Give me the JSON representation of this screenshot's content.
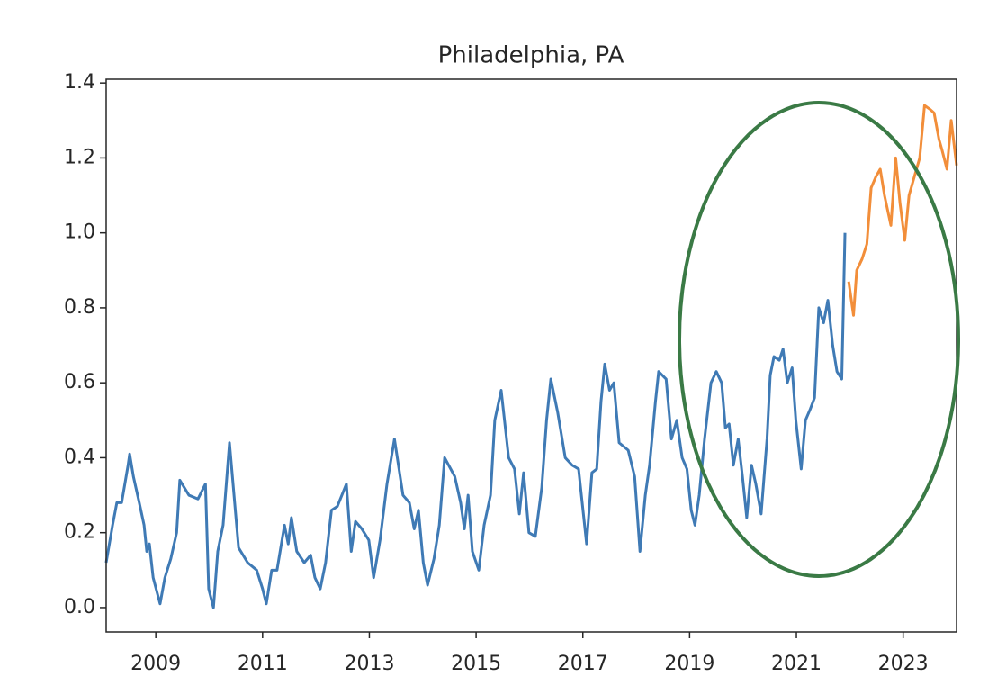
{
  "chart_data": {
    "type": "line",
    "title": "Philadelphia, PA",
    "xlim": [
      2008.07,
      2024.0
    ],
    "xticks": [
      2009,
      2011,
      2013,
      2015,
      2017,
      2019,
      2021,
      2023
    ],
    "ylim": [
      -0.065,
      1.41
    ],
    "yticks": [
      {
        "value": 0,
        "label": "0.0"
      },
      0.2,
      0.4,
      0.6,
      0.8,
      {
        "value": 1,
        "label": "1.0"
      },
      1.2,
      1.4
    ],
    "grid": false,
    "series": [
      {
        "color": "#3f7ab5",
        "x": [
          2008.07,
          2008.19,
          2008.27,
          2008.36,
          2008.48,
          2008.51,
          2008.58,
          2008.69,
          2008.78,
          2008.83,
          2008.88,
          2008.95,
          2009.08,
          2009.17,
          2009.28,
          2009.39,
          2009.45,
          2009.62,
          2009.79,
          2009.93,
          2009.99,
          2010.08,
          2010.16,
          2010.26,
          2010.38,
          2010.55,
          2010.72,
          2010.89,
          2011.0,
          2011.07,
          2011.17,
          2011.27,
          2011.41,
          2011.48,
          2011.54,
          2011.64,
          2011.78,
          2011.9,
          2011.98,
          2012.08,
          2012.18,
          2012.29,
          2012.4,
          2012.57,
          2012.66,
          2012.74,
          2012.86,
          2012.99,
          2013.08,
          2013.2,
          2013.33,
          2013.47,
          2013.63,
          2013.75,
          2013.84,
          2013.92,
          2014.01,
          2014.09,
          2014.21,
          2014.31,
          2014.41,
          2014.6,
          2014.71,
          2014.78,
          2014.85,
          2014.93,
          2015.05,
          2015.15,
          2015.27,
          2015.35,
          2015.47,
          2015.61,
          2015.72,
          2015.81,
          2015.89,
          2015.99,
          2016.11,
          2016.23,
          2016.32,
          2016.4,
          2016.53,
          2016.67,
          2016.8,
          2016.92,
          2017.01,
          2017.07,
          2017.17,
          2017.26,
          2017.34,
          2017.41,
          2017.5,
          2017.58,
          2017.68,
          2017.85,
          2017.97,
          2018.07,
          2018.17,
          2018.25,
          2018.36,
          2018.42,
          2018.56,
          2018.66,
          2018.76,
          2018.86,
          2018.95,
          2019.03,
          2019.1,
          2019.18,
          2019.28,
          2019.4,
          2019.5,
          2019.6,
          2019.67,
          2019.74,
          2019.82,
          2019.91,
          2019.99,
          2020.07,
          2020.16,
          2020.24,
          2020.34,
          2020.45,
          2020.51,
          2020.58,
          2020.68,
          2020.75,
          2020.83,
          2020.92,
          2020.99,
          2021.09,
          2021.17,
          2021.26,
          2021.34,
          2021.42,
          2021.51,
          2021.59,
          2021.68,
          2021.76,
          2021.85,
          2021.91
        ],
        "values": [
          0.12,
          0.22,
          0.28,
          0.28,
          0.38,
          0.41,
          0.35,
          0.28,
          0.22,
          0.15,
          0.17,
          0.08,
          0.01,
          0.08,
          0.13,
          0.2,
          0.34,
          0.3,
          0.29,
          0.33,
          0.05,
          0.0,
          0.15,
          0.22,
          0.44,
          0.16,
          0.12,
          0.1,
          0.05,
          0.01,
          0.1,
          0.1,
          0.22,
          0.17,
          0.24,
          0.15,
          0.12,
          0.14,
          0.08,
          0.05,
          0.12,
          0.26,
          0.27,
          0.33,
          0.15,
          0.23,
          0.21,
          0.18,
          0.08,
          0.18,
          0.33,
          0.45,
          0.3,
          0.28,
          0.21,
          0.26,
          0.12,
          0.06,
          0.13,
          0.22,
          0.4,
          0.35,
          0.28,
          0.21,
          0.3,
          0.15,
          0.1,
          0.22,
          0.3,
          0.5,
          0.58,
          0.4,
          0.37,
          0.25,
          0.36,
          0.2,
          0.19,
          0.32,
          0.5,
          0.61,
          0.52,
          0.4,
          0.38,
          0.37,
          0.25,
          0.17,
          0.36,
          0.37,
          0.55,
          0.65,
          0.58,
          0.6,
          0.44,
          0.42,
          0.35,
          0.15,
          0.3,
          0.38,
          0.55,
          0.63,
          0.61,
          0.45,
          0.5,
          0.4,
          0.37,
          0.26,
          0.22,
          0.3,
          0.45,
          0.6,
          0.63,
          0.6,
          0.48,
          0.49,
          0.38,
          0.45,
          0.35,
          0.24,
          0.38,
          0.33,
          0.25,
          0.45,
          0.62,
          0.67,
          0.66,
          0.69,
          0.6,
          0.64,
          0.5,
          0.37,
          0.5,
          0.53,
          0.56,
          0.8,
          0.76,
          0.82,
          0.7,
          0.63,
          0.61,
          1.0
        ]
      },
      {
        "color": "#f28e3a",
        "x": [
          2021.98,
          2022.07,
          2022.13,
          2022.23,
          2022.32,
          2022.4,
          2022.49,
          2022.57,
          2022.65,
          2022.77,
          2022.86,
          2022.94,
          2023.03,
          2023.11,
          2023.19,
          2023.31,
          2023.4,
          2023.5,
          2023.58,
          2023.67,
          2023.73,
          2023.82,
          2023.9,
          2024.0
        ],
        "values": [
          0.87,
          0.78,
          0.9,
          0.93,
          0.97,
          1.12,
          1.15,
          1.17,
          1.1,
          1.02,
          1.2,
          1.08,
          0.98,
          1.1,
          1.14,
          1.2,
          1.34,
          1.33,
          1.32,
          1.25,
          1.22,
          1.17,
          1.3,
          1.18
        ]
      }
    ]
  }
}
